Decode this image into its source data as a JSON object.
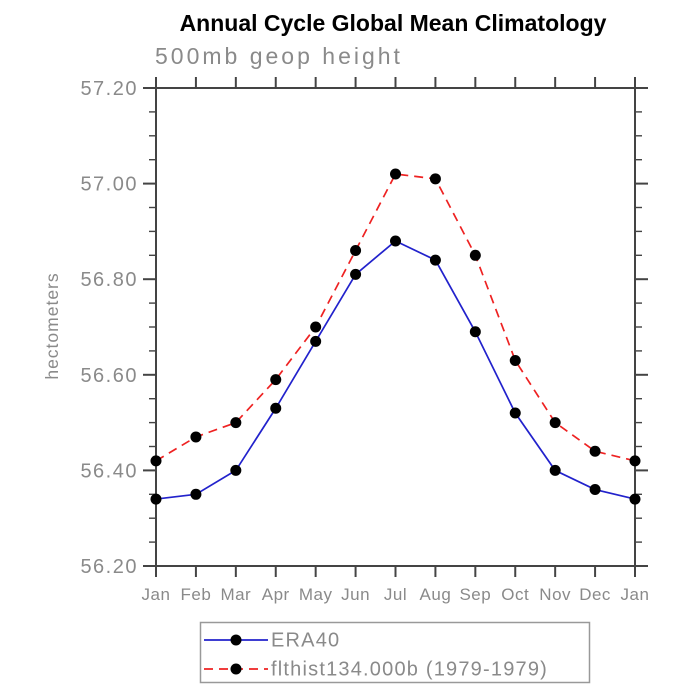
{
  "title": "Annual Cycle Global Mean Climatology",
  "subtitle": "500mb geop height",
  "chart_data": {
    "type": "line",
    "categories": [
      "Jan",
      "Feb",
      "Mar",
      "Apr",
      "May",
      "Jun",
      "Jul",
      "Aug",
      "Sep",
      "Oct",
      "Nov",
      "Dec",
      "Jan"
    ],
    "series": [
      {
        "name": "ERA40",
        "color": "#2222cc",
        "line_style": "solid",
        "marker": "filled-circle",
        "marker_color": "#000000",
        "values": [
          56.34,
          56.35,
          56.4,
          56.53,
          56.67,
          56.81,
          56.88,
          56.84,
          56.69,
          56.52,
          56.4,
          56.36,
          56.34
        ]
      },
      {
        "name": "flthist134.000b (1979-1979)",
        "color": "#ee2222",
        "line_style": "dashed",
        "marker": "filled-circle",
        "marker_color": "#000000",
        "values": [
          56.42,
          56.47,
          56.5,
          56.59,
          56.7,
          56.86,
          57.02,
          57.01,
          56.85,
          56.63,
          56.5,
          56.44,
          56.42
        ]
      }
    ],
    "xlabel": "",
    "ylabel": "hectometers",
    "ylim": [
      56.2,
      57.2
    ],
    "ytick_major_step": 0.2,
    "ytick_minor_step": 0.05,
    "ytick_labels": [
      "56.20",
      "56.40",
      "56.60",
      "56.80",
      "57.00",
      "57.20"
    ],
    "grid": false,
    "legend_position": "bottom"
  },
  "colors": {
    "background": "#ffffff",
    "axis": "#444444",
    "label_text": "#8a8a8a",
    "title_text": "#000000",
    "legend_border": "#999999"
  }
}
